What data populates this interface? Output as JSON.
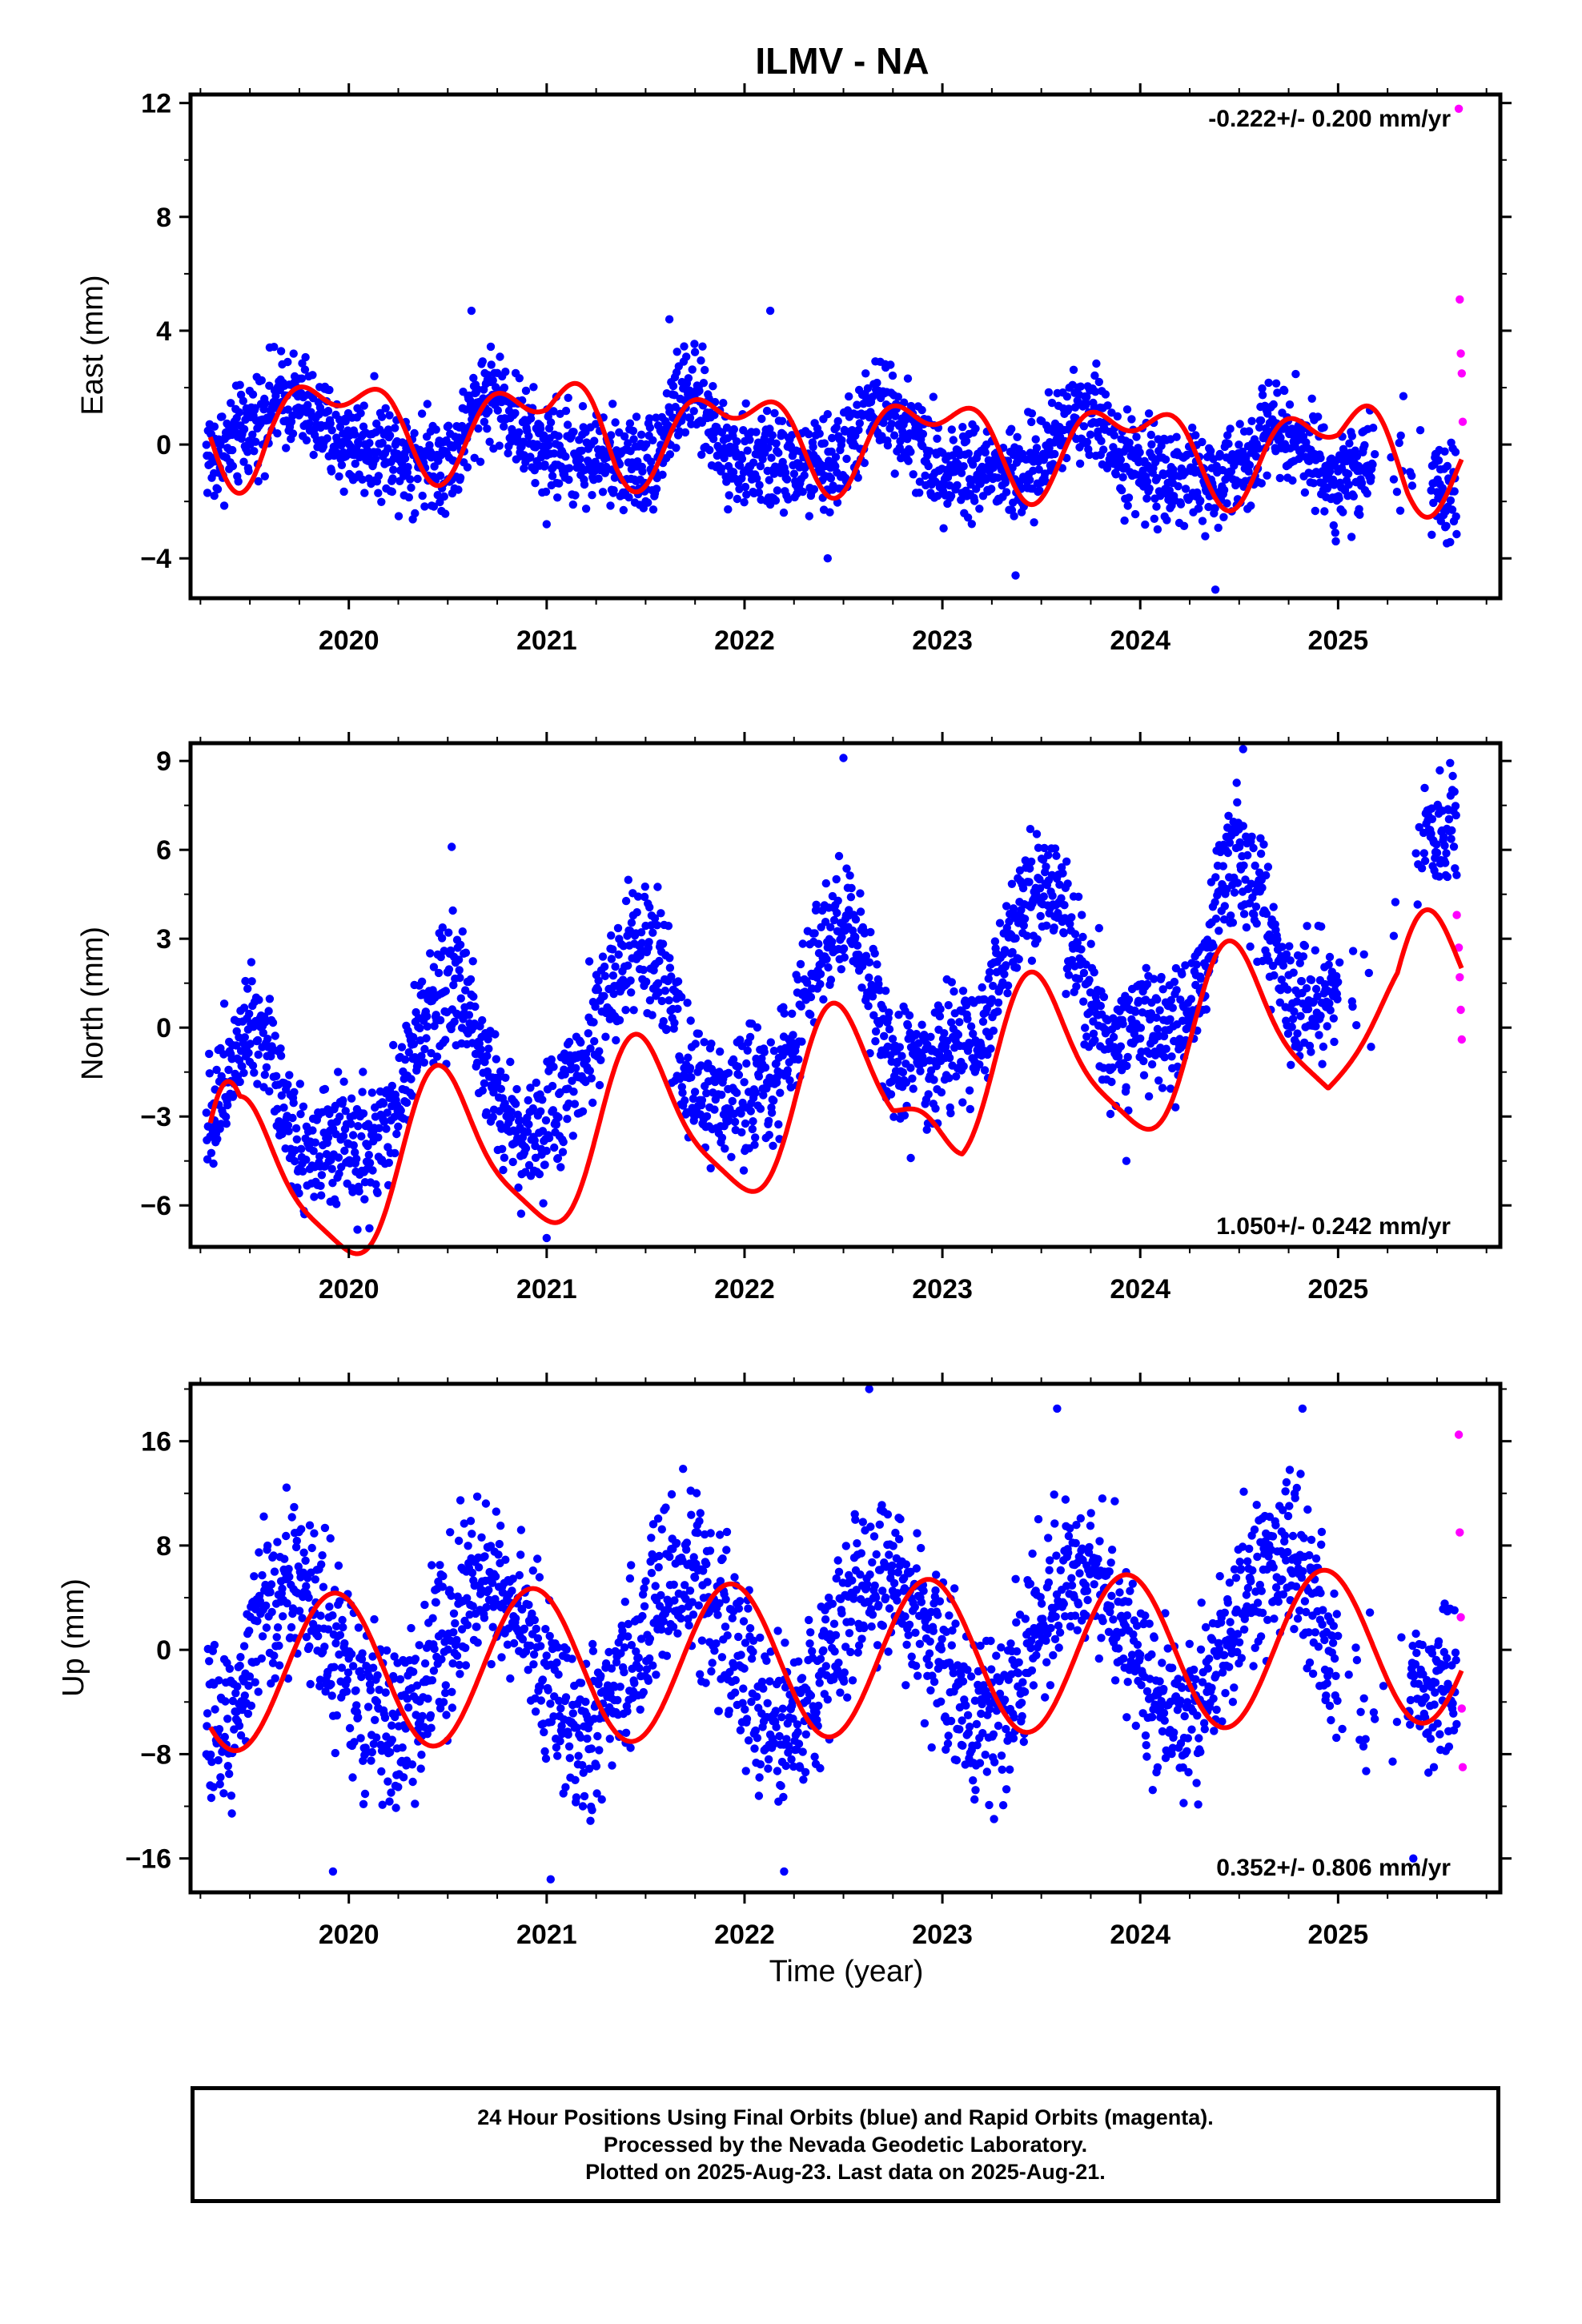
{
  "title": "ILMV - NA",
  "colors": {
    "final": "#0000ff",
    "rapid": "#ff00ff",
    "model": "#ff0000",
    "frame": "#000000"
  },
  "xaxis": {
    "label": "Time (year)",
    "ticks": [
      "2020",
      "2021",
      "2022",
      "2023",
      "2024",
      "2025"
    ],
    "range": [
      2019.2,
      2025.82
    ]
  },
  "caption": [
    "24 Hour Positions Using Final Orbits (blue) and Rapid Orbits (magenta).",
    "Processed by the Nevada Geodetic Laboratory.",
    "Plotted on 2025-Aug-23. Last data on 2025-Aug-21."
  ],
  "chart_data": [
    {
      "type": "scatter",
      "panel": "east",
      "ylabel": "East (mm)",
      "ylim": [
        -5.4,
        12.3
      ],
      "yticks": [
        -4,
        0,
        4,
        8,
        12
      ],
      "velocity": "-0.222+/- 0.200 mm/yr",
      "velocity_position": "top-right",
      "model": {
        "slope": -0.222,
        "offset": 0.3,
        "annual": [
          [
            0.0,
            -1.35
          ],
          [
            1.0,
            0.0
          ]
        ],
        "semi": [
          [
            -0.15,
            0.0
          ],
          [
            0.3,
            0.0
          ]
        ],
        "mods": [
          [
            2019.25,
            2019.6,
            -0.5
          ],
          [
            2021.0,
            2021.35,
            0.45
          ],
          [
            2025.0,
            2025.35,
            0.55
          ]
        ]
      },
      "final": {
        "years": [
          2019.3,
          2019.7,
          2020.0,
          2020.5,
          2020.7,
          2021.0,
          2021.5,
          2021.7,
          2022.0,
          2022.4,
          2022.7,
          2023.0,
          2023.4,
          2023.7,
          2024.0,
          2024.4,
          2024.7,
          2025.0,
          2025.2,
          2025.5
        ],
        "values": [
          -0.3,
          1.6,
          0.0,
          -0.5,
          1.8,
          -0.2,
          -0.7,
          1.7,
          -0.6,
          -0.8,
          1.3,
          -0.7,
          -1.1,
          1.3,
          -0.8,
          -1.4,
          0.8,
          -1.2,
          -0.7,
          -1.7
        ],
        "spread": 0.85,
        "gaps": [
          [
            2025.18,
            2025.47
          ]
        ],
        "outliers": [
          [
            2019.32,
            -1.8
          ],
          [
            2020.62,
            4.7
          ],
          [
            2021.62,
            4.4
          ],
          [
            2022.13,
            4.7
          ],
          [
            2023.37,
            -4.6
          ],
          [
            2024.38,
            -5.1
          ],
          [
            2022.42,
            -4.0
          ],
          [
            2021.0,
            -2.8
          ],
          [
            2025.33,
            1.7
          ]
        ]
      },
      "rapid": {
        "years": [
          2025.61,
          2025.615,
          2025.62,
          2025.625,
          2025.63
        ],
        "values": [
          11.8,
          5.1,
          3.2,
          2.5,
          0.8
        ]
      }
    },
    {
      "type": "scatter",
      "panel": "north",
      "ylabel": "North (mm)",
      "ylim": [
        -7.4,
        9.6
      ],
      "yticks": [
        -6,
        -3,
        0,
        3,
        6,
        9
      ],
      "velocity": "1.050+/- 0.242 mm/yr",
      "velocity_position": "bottom-right",
      "model": {
        "slope": 1.05,
        "offset": -2.42,
        "annual": [
          [
            -0.5,
            2.75
          ],
          [
            -1.0,
            0.3
          ]
        ],
        "semi": [
          [
            0.45,
            0.0
          ],
          [
            0.0,
            0.0
          ]
        ],
        "mods": [
          [
            2019.2,
            2019.45,
            1.3
          ],
          [
            2022.75,
            2023.1,
            1.0
          ],
          [
            2024.95,
            2025.3,
            1.4
          ]
        ]
      },
      "final": {
        "years": [
          2019.3,
          2019.5,
          2019.8,
          2020.1,
          2020.5,
          2020.9,
          2021.5,
          2021.8,
          2022.1,
          2022.5,
          2022.8,
          2023.1,
          2023.5,
          2023.9,
          2024.2,
          2024.5,
          2024.8,
          2025.1,
          2025.5
        ],
        "values": [
          -2.8,
          0.4,
          -4.2,
          -4.2,
          1.5,
          -3.7,
          2.6,
          -2.5,
          -1.9,
          3.6,
          -1.3,
          -0.8,
          4.7,
          -0.5,
          0.3,
          5.7,
          0.8,
          1.2,
          6.7
        ],
        "spread": 1.05,
        "gaps": [
          [
            2025.0,
            2025.43
          ]
        ],
        "outliers": [
          [
            2022.5,
            9.1
          ],
          [
            2024.52,
            9.4
          ],
          [
            2020.52,
            6.1
          ],
          [
            2021.0,
            -7.1
          ],
          [
            2023.93,
            -4.5
          ],
          [
            2022.84,
            -4.4
          ]
        ]
      },
      "rapid": {
        "years": [
          2025.6,
          2025.61,
          2025.615,
          2025.62,
          2025.625
        ],
        "values": [
          3.8,
          2.7,
          1.7,
          0.6,
          -0.4
        ]
      }
    },
    {
      "type": "scatter",
      "panel": "up",
      "ylabel": "Up (mm)",
      "ylim": [
        -18.6,
        20.4
      ],
      "yticks": [
        -16,
        -8,
        0,
        8,
        16
      ],
      "velocity": "0.352+/- 0.806 mm/yr",
      "velocity_position": "bottom-right",
      "model": {
        "slope": 0.352,
        "offset": -0.7,
        "annual": [
          [
            -0.8,
            -5.9
          ],
          [
            0.0,
            0.0
          ]
        ],
        "semi": [
          [
            0.0,
            0.0
          ],
          [
            0.0,
            0.0
          ]
        ],
        "mods": []
      },
      "final": {
        "years": [
          2019.3,
          2019.7,
          2020.2,
          2020.7,
          2021.2,
          2021.7,
          2022.2,
          2022.7,
          2023.2,
          2023.7,
          2024.2,
          2024.7,
          2025.2,
          2025.5
        ],
        "values": [
          -6.5,
          5.2,
          -6.2,
          5.5,
          -6.3,
          5.9,
          -5.8,
          6.0,
          -5.5,
          6.4,
          -4.9,
          6.6,
          -4.5,
          -2.0
        ],
        "spread": 3.2,
        "gaps": [
          [
            2025.0,
            2025.35
          ]
        ],
        "outliers": [
          [
            2022.63,
            20.0
          ],
          [
            2021.02,
            -17.6
          ],
          [
            2019.92,
            -17.0
          ],
          [
            2022.2,
            -17.0
          ],
          [
            2024.82,
            18.5
          ],
          [
            2023.58,
            18.5
          ],
          [
            2025.38,
            -16.0
          ]
        ]
      },
      "rapid": {
        "years": [
          2025.61,
          2025.615,
          2025.62,
          2025.625,
          2025.63
        ],
        "values": [
          16.5,
          9.0,
          2.5,
          -4.5,
          -9.0
        ]
      }
    }
  ]
}
